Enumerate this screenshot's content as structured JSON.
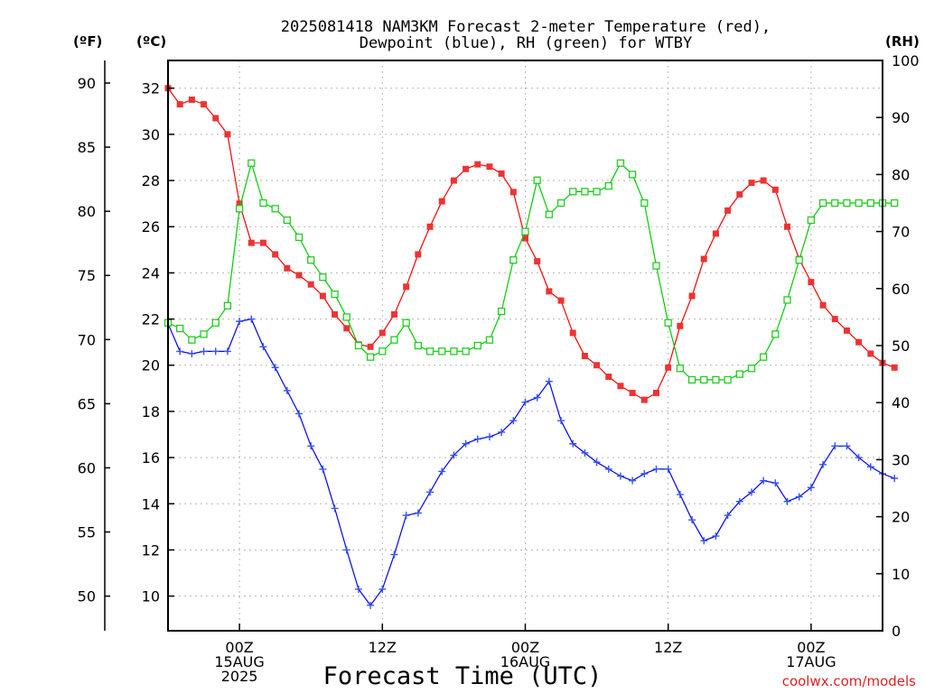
{
  "chart_data": {
    "type": "line",
    "title": "2025081418 NAM3KM Forecast 2-meter Temperature (red),",
    "subtitle": "Dewpoint (blue), RH (green) for WTBY",
    "xlabel": "Forecast Time (UTC)",
    "credit": "coolwx.com/models",
    "axis_units": {
      "fahrenheit": "(ºF)",
      "celsius": "(ºC)",
      "rh": "(RH)"
    },
    "x_ticks": [
      {
        "hour": 6,
        "lines": [
          "00Z",
          "15AUG",
          "2025"
        ]
      },
      {
        "hour": 18,
        "lines": [
          "12Z"
        ]
      },
      {
        "hour": 30,
        "lines": [
          "00Z",
          "16AUG"
        ]
      },
      {
        "hour": 42,
        "lines": [
          "12Z"
        ]
      },
      {
        "hour": 54,
        "lines": [
          "00Z",
          "17AUG"
        ]
      }
    ],
    "x_range_hours": [
      0,
      60
    ],
    "celsius_range": [
      8.5,
      33.2
    ],
    "celsius_ticks": [
      "10",
      "12",
      "14",
      "16",
      "18",
      "20",
      "22",
      "24",
      "26",
      "28",
      "30",
      "32"
    ],
    "fahrenheit_ticks": [
      "50",
      "55",
      "60",
      "65",
      "70",
      "75",
      "80",
      "85",
      "90"
    ],
    "rh_range": [
      0,
      100
    ],
    "rh_ticks": [
      "0",
      "10",
      "20",
      "30",
      "40",
      "50",
      "60",
      "70",
      "80",
      "90",
      "100"
    ],
    "grid": true,
    "series": [
      {
        "color": "#ff0000",
        "marker_color": "#ee3333",
        "marker": "filled-square",
        "axis": "celsius",
        "values": [
          32.0,
          31.3,
          31.5,
          31.3,
          30.7,
          30.0,
          27.0,
          25.3,
          25.3,
          24.8,
          24.2,
          23.9,
          23.5,
          23.0,
          22.2,
          21.6,
          20.9,
          20.8,
          21.4,
          22.2,
          23.4,
          24.8,
          26.0,
          27.1,
          28.0,
          28.5,
          28.7,
          28.6,
          28.3,
          27.5,
          25.5,
          24.5,
          23.2,
          22.8,
          21.4,
          20.4,
          20.0,
          19.5,
          19.1,
          18.8,
          18.5,
          18.8,
          19.9,
          21.7,
          23.0,
          24.6,
          25.7,
          26.7,
          27.4,
          27.9,
          28.0,
          27.6,
          26.0,
          24.6,
          23.6,
          22.6,
          22.0,
          21.5,
          21.0,
          20.5,
          20.1,
          19.9
        ]
      },
      {
        "color": "#0000ff",
        "marker_color": "#3355ee",
        "marker": "plus",
        "axis": "celsius",
        "values": [
          21.8,
          20.6,
          20.5,
          20.6,
          20.6,
          20.6,
          21.9,
          22.0,
          20.8,
          19.9,
          18.9,
          17.9,
          16.5,
          15.5,
          13.8,
          12.0,
          10.3,
          9.6,
          10.3,
          11.8,
          13.5,
          13.6,
          14.5,
          15.4,
          16.1,
          16.6,
          16.8,
          16.9,
          17.1,
          17.6,
          18.4,
          18.6,
          19.3,
          17.6,
          16.6,
          16.2,
          15.8,
          15.5,
          15.2,
          15.0,
          15.3,
          15.5,
          15.5,
          14.4,
          13.3,
          12.4,
          12.6,
          13.5,
          14.1,
          14.5,
          15.0,
          14.9,
          14.1,
          14.3,
          14.7,
          15.7,
          16.5,
          16.5,
          16.0,
          15.6,
          15.3,
          15.1
        ]
      },
      {
        "color": "#00cc00",
        "marker_color": "#22cc22",
        "marker": "open-square",
        "axis": "rh",
        "values": [
          54,
          53,
          51,
          52,
          54,
          57,
          74,
          82,
          75,
          74,
          72,
          69,
          65,
          62,
          59,
          55,
          50,
          48,
          49,
          51,
          54,
          50,
          49,
          49,
          49,
          49,
          50,
          51,
          56,
          65,
          70,
          79,
          73,
          75,
          77,
          77,
          77,
          78,
          82,
          80,
          75,
          64,
          54,
          46,
          44,
          44,
          44,
          44,
          45,
          46,
          48,
          52,
          58,
          65,
          72,
          75,
          75,
          75,
          75,
          75,
          75,
          75
        ]
      }
    ]
  }
}
